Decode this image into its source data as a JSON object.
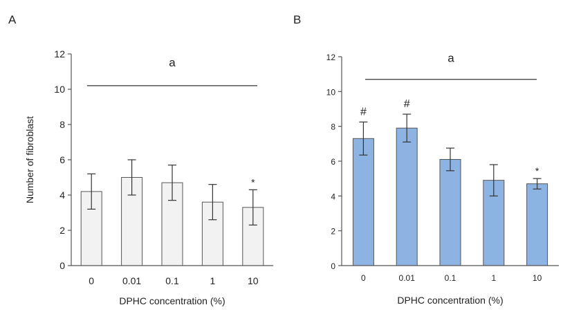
{
  "chart_data": [
    {
      "panel": "A",
      "type": "bar",
      "categories": [
        "0",
        "0.01",
        "0.1",
        "1",
        "10"
      ],
      "values": [
        4.2,
        5.0,
        4.7,
        3.6,
        3.3
      ],
      "errors": [
        1.0,
        1.0,
        1.0,
        1.0,
        1.0
      ],
      "markers": [
        "",
        "",
        "",
        "",
        "*"
      ],
      "bar_color": "#f2f2f2",
      "ylabel": "Number of  fibroblast",
      "xlabel": "DPHC concentration (%)",
      "ylim": [
        0,
        12
      ],
      "yticks": [
        0,
        2,
        4,
        6,
        8,
        10,
        12
      ],
      "bracket_label": "a",
      "grid": false,
      "legend": "none"
    },
    {
      "panel": "B",
      "type": "bar",
      "categories": [
        "0",
        "0.01",
        "0.1",
        "1",
        "10"
      ],
      "values": [
        7.3,
        7.9,
        6.1,
        4.9,
        4.7
      ],
      "errors": [
        0.95,
        0.8,
        0.65,
        0.9,
        0.3
      ],
      "markers": [
        "#",
        "#",
        "",
        "",
        "*"
      ],
      "bar_color": "#8db3e2",
      "ylabel": "",
      "xlabel": "DPHC concentration (%)",
      "ylim": [
        0,
        12
      ],
      "yticks": [
        0,
        2,
        4,
        6,
        8,
        10,
        12
      ],
      "bracket_label": "a",
      "grid": false,
      "legend": "none"
    }
  ]
}
